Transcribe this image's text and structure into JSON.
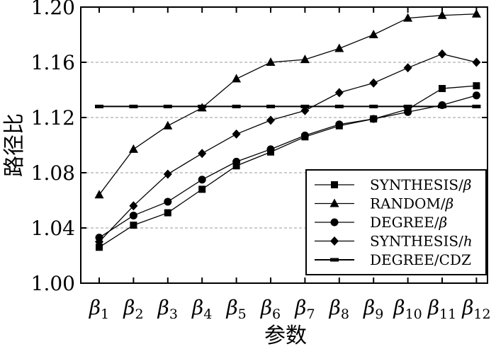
{
  "chart_data": {
    "type": "line",
    "ylabel": "路径比",
    "xlabel": "参数",
    "categories": [
      "β1",
      "β2",
      "β3",
      "β4",
      "β5",
      "β6",
      "β7",
      "β8",
      "β9",
      "β10",
      "β11",
      "β12"
    ],
    "category_base": "β",
    "category_subs": [
      "1",
      "2",
      "3",
      "4",
      "5",
      "6",
      "7",
      "8",
      "9",
      "10",
      "11",
      "12"
    ],
    "ylim": [
      1.0,
      1.2
    ],
    "yticks": [
      "1.00",
      "1.04",
      "1.08",
      "1.12",
      "1.16",
      "1.20"
    ],
    "grid": "horizontal dashed at 1.04, 1.08, 1.12, 1.16",
    "legend_position": "bottom-right",
    "series": [
      {
        "name": "SYNTHESIS/β",
        "marker": "square",
        "values": [
          1.026,
          1.042,
          1.051,
          1.068,
          1.085,
          1.095,
          1.106,
          1.114,
          1.119,
          1.126,
          1.141,
          1.143
        ]
      },
      {
        "name": "RANDOM/β",
        "marker": "triangle",
        "values": [
          1.064,
          1.097,
          1.114,
          1.127,
          1.148,
          1.16,
          1.162,
          1.17,
          1.18,
          1.192,
          1.194,
          1.195
        ]
      },
      {
        "name": "DEGREE/β",
        "marker": "circle",
        "values": [
          1.033,
          1.049,
          1.059,
          1.075,
          1.088,
          1.097,
          1.107,
          1.115,
          1.119,
          1.124,
          1.129,
          1.136
        ]
      },
      {
        "name": "SYNTHESIS/h",
        "marker": "diamond",
        "values": [
          1.03,
          1.056,
          1.079,
          1.094,
          1.108,
          1.118,
          1.125,
          1.138,
          1.145,
          1.156,
          1.166,
          1.16
        ]
      },
      {
        "name": "DEGREE/CDZ",
        "marker": "dash",
        "values": [
          1.128,
          1.128,
          1.128,
          1.128,
          1.128,
          1.128,
          1.128,
          1.128,
          1.128,
          1.128,
          1.128,
          1.128
        ]
      }
    ],
    "legend": [
      {
        "prefix": "SYNTHESIS/",
        "suffix": "β",
        "marker": "square"
      },
      {
        "prefix": "RANDOM/",
        "suffix": "β",
        "marker": "triangle"
      },
      {
        "prefix": "DEGREE/",
        "suffix": "β",
        "marker": "circle"
      },
      {
        "prefix": "SYNTHESIS/",
        "suffix": "h",
        "marker": "diamond"
      },
      {
        "prefix": "DEGREE/CDZ",
        "suffix": "",
        "marker": "dash"
      }
    ],
    "colors": {
      "line": "#000000",
      "grid": "#999999",
      "background": "#ffffff"
    }
  }
}
